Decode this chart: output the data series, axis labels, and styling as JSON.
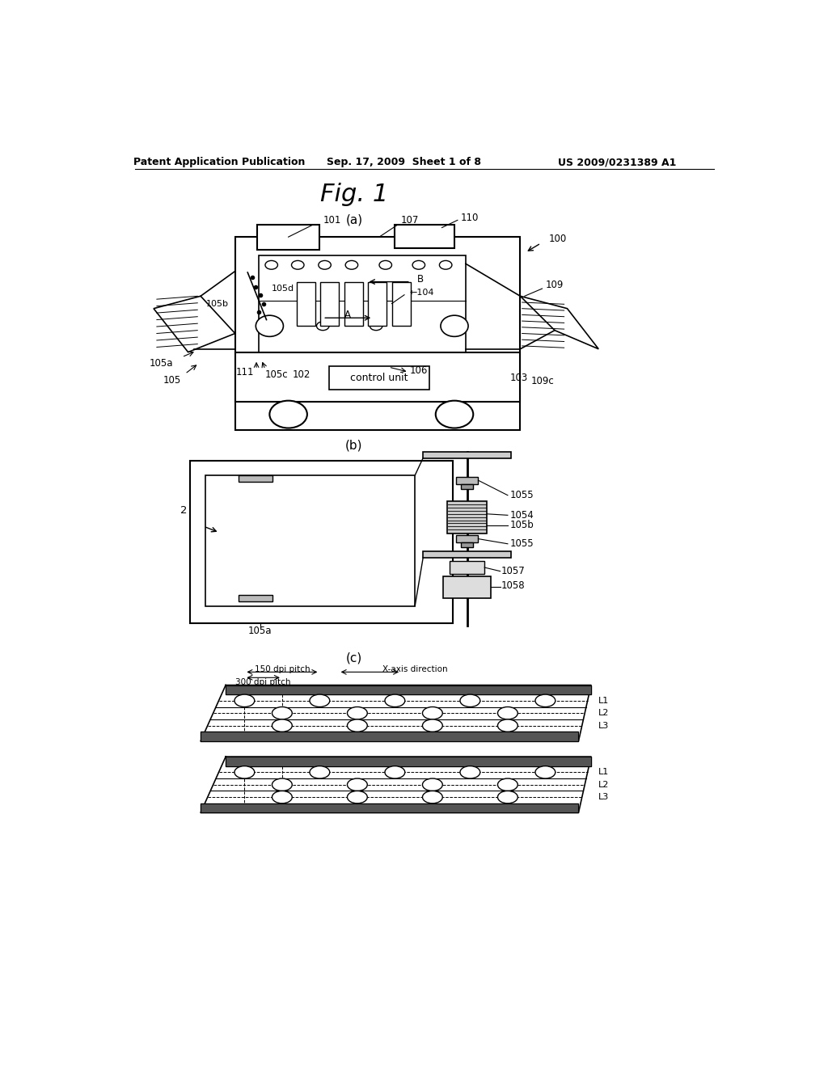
{
  "bg_color": "#ffffff",
  "header_left": "Patent Application Publication",
  "header_mid": "Sep. 17, 2009  Sheet 1 of 8",
  "header_right": "US 2009/0231389 A1",
  "fig_title": "Fig. 1",
  "sub_a": "(a)",
  "sub_b": "(b)",
  "sub_c": "(c)"
}
